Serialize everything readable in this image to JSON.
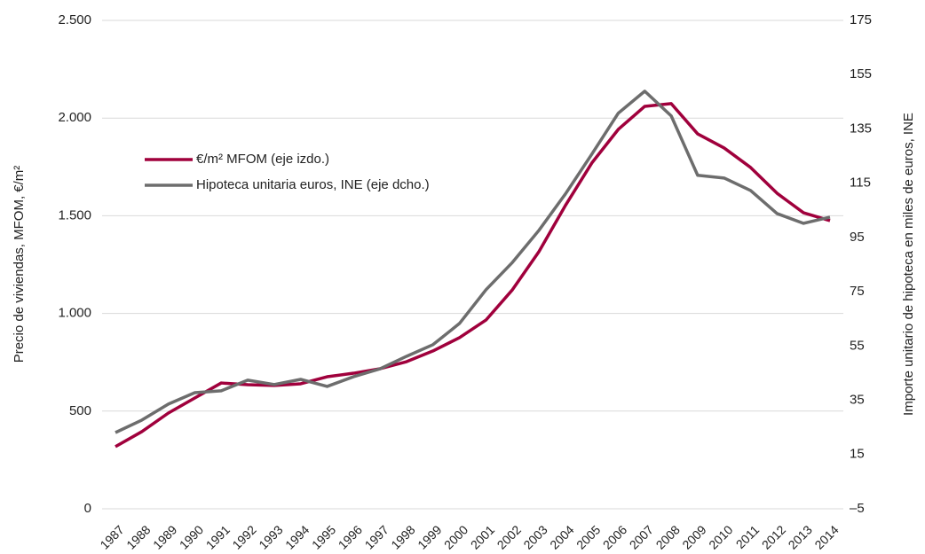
{
  "chart_data": {
    "type": "line",
    "y_label": "Precio de viviendas, MFOM, €/m²",
    "y2_label": "Importe unitario de hipoteca en miles de  euros, INE",
    "categories": [
      "1987",
      "1988",
      "1989",
      "1990",
      "1991",
      "1992",
      "1993",
      "1994",
      "1995",
      "1996",
      "1997",
      "1998",
      "1999",
      "2000",
      "2001",
      "2002",
      "2003",
      "2004",
      "2005",
      "2006",
      "2007",
      "2008",
      "2009",
      "2010",
      "2011",
      "2012",
      "2013",
      "2014"
    ],
    "series": [
      {
        "name": "€/m² MFOM (eje izdo.)",
        "color": "#a0003c",
        "axis": "y",
        "values": [
          318,
          395,
          490,
          567,
          644,
          635,
          631,
          640,
          676,
          694,
          717,
          753,
          808,
          876,
          966,
          1121,
          1316,
          1552,
          1770,
          1942,
          2060,
          2074,
          1919,
          1847,
          1747,
          1615,
          1515,
          1475
        ]
      },
      {
        "name": "Hipoteca unitaria euros, INE (eje dcho.)",
        "color": "#6d6d6d",
        "axis": "y2",
        "values": [
          23.1,
          27.7,
          33.6,
          37.8,
          38.5,
          42.4,
          40.8,
          42.7,
          40.1,
          43.7,
          46.6,
          51.2,
          55.5,
          63.3,
          75.7,
          85.8,
          97.6,
          111,
          125.7,
          140.8,
          148.9,
          139.8,
          117.9,
          116.9,
          112.3,
          103.8,
          100.2,
          102.5
        ]
      }
    ],
    "ylim": [
      0,
      2500
    ],
    "yticks": [
      0,
      500,
      {
        "value": 1000,
        "label": "1.000"
      },
      {
        "value": 1500,
        "label": "1.500"
      },
      {
        "value": 2000,
        "label": "2.000"
      },
      {
        "value": 2500,
        "label": "2.500"
      }
    ],
    "y2lim": [
      -5,
      175
    ],
    "y2ticks": [
      {
        "value": -5,
        "label": "–5"
      },
      15,
      35,
      55,
      75,
      95,
      115,
      135,
      155,
      175
    ],
    "grid": true,
    "legend": "upper left"
  }
}
